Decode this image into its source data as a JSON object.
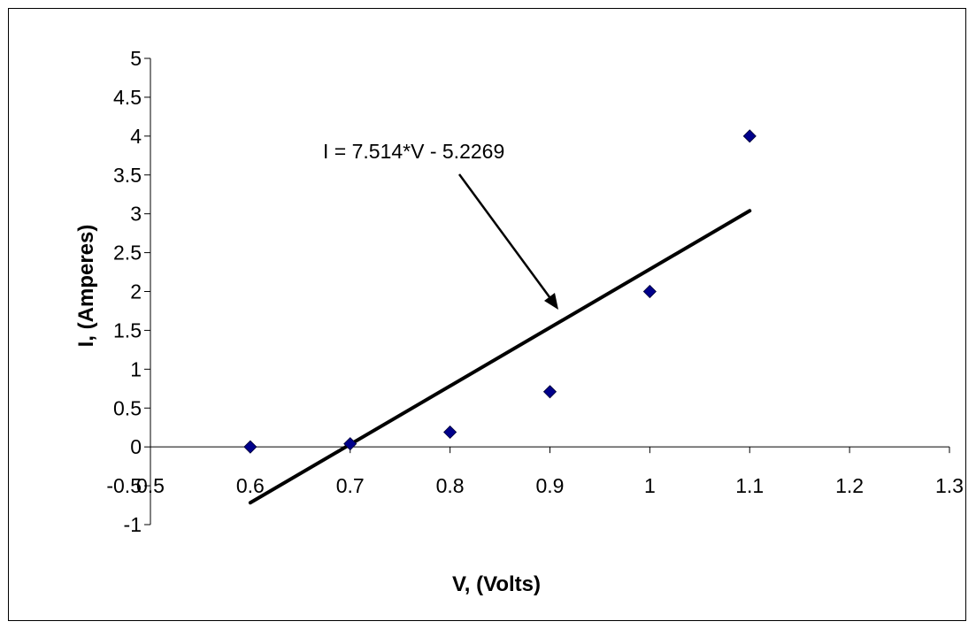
{
  "chart_data": {
    "type": "scatter",
    "title": "",
    "xlabel": "V, (Volts)",
    "ylabel": "I, (Amperes)",
    "xlim": [
      0.5,
      1.3
    ],
    "ylim": [
      -1,
      5
    ],
    "x_ticks": [
      "0.5",
      "0.6",
      "0.7",
      "0.8",
      "0.9",
      "1",
      "1.1",
      "1.2",
      "1.3"
    ],
    "y_ticks": [
      "5",
      "4.5",
      "4",
      "3.5",
      "3",
      "2.5",
      "2",
      "1.5",
      "1",
      "0.5",
      "0",
      "-0.5",
      "-1"
    ],
    "grid": false,
    "legend": "none",
    "series": [
      {
        "x": [
          0.6,
          0.7,
          0.8,
          0.9,
          1.0,
          1.1
        ],
        "y": [
          0.0,
          0.04,
          0.19,
          0.71,
          2.0,
          4.0
        ]
      }
    ],
    "trendline": {
      "x": [
        0.6,
        1.1
      ],
      "equation": "I = 7.514*V - 5.2269",
      "slope": 7.514,
      "intercept": -5.2269
    },
    "colors": {
      "marker": "#00008B",
      "trendline": "#000000"
    }
  }
}
